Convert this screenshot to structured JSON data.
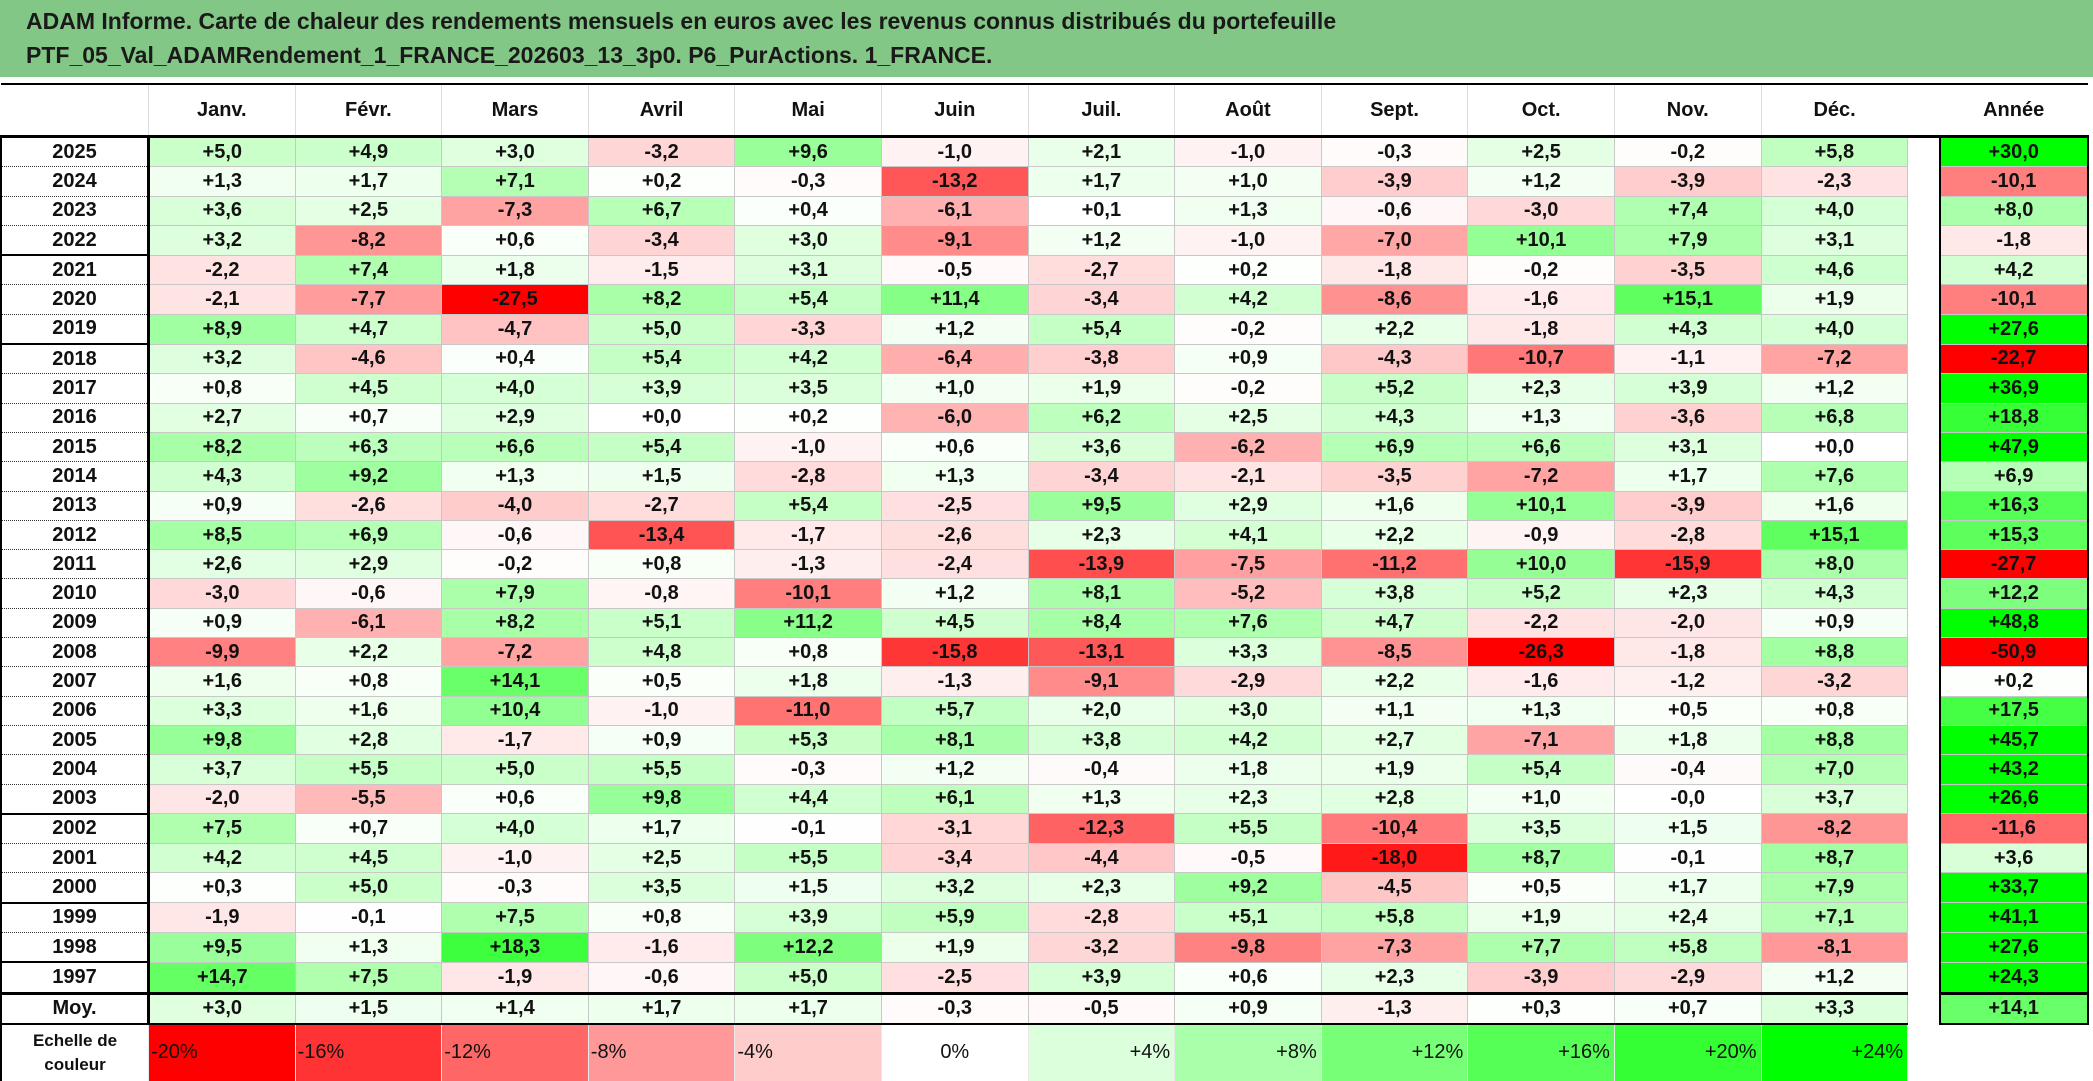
{
  "title": {
    "line1": "ADAM Informe. Carte de chaleur des rendements mensuels en euros avec les revenus connus distribués du portefeuille",
    "line2": "PTF_05_Val_ADAMRendement_1_FRANCE_202603_13_3p0. P6_PurActions. 1_FRANCE."
  },
  "chart_data": {
    "type": "heatmap",
    "columns": [
      "Janv.",
      "Févr.",
      "Mars",
      "Avril",
      "Mai",
      "Juin",
      "Juil.",
      "Août",
      "Sept.",
      "Oct.",
      "Nov.",
      "Déc."
    ],
    "annual_header": "Année",
    "rows": [
      {
        "year": "2025",
        "months": [
          "+5,0",
          "+4,9",
          "+3,0",
          "-3,2",
          "+9,6",
          "-1,0",
          "+2,1",
          "-1,0",
          "-0,3",
          "+2,5",
          "-0,2",
          "+5,8"
        ],
        "annual": "+30,0"
      },
      {
        "year": "2024",
        "months": [
          "+1,3",
          "+1,7",
          "+7,1",
          "+0,2",
          "-0,3",
          "-13,2",
          "+1,7",
          "+1,0",
          "-3,9",
          "+1,2",
          "-3,9",
          "-2,3"
        ],
        "annual": "-10,1"
      },
      {
        "year": "2023",
        "months": [
          "+3,6",
          "+2,5",
          "-7,3",
          "+6,7",
          "+0,4",
          "-6,1",
          "+0,1",
          "+1,3",
          "-0,6",
          "-3,0",
          "+7,4",
          "+4,0"
        ],
        "annual": "+8,0"
      },
      {
        "year": "2022",
        "months": [
          "+3,2",
          "-8,2",
          "+0,6",
          "-3,4",
          "+3,0",
          "-9,1",
          "+1,2",
          "-1,0",
          "-7,0",
          "+10,1",
          "+7,9",
          "+3,1"
        ],
        "annual": "-1,8"
      },
      {
        "year": "2021",
        "months": [
          "-2,2",
          "+7,4",
          "+1,8",
          "-1,5",
          "+3,1",
          "-0,5",
          "-2,7",
          "+0,2",
          "-1,8",
          "-0,2",
          "-3,5",
          "+4,6"
        ],
        "annual": "+4,2"
      },
      {
        "year": "2020",
        "months": [
          "-2,1",
          "-7,7",
          "-27,5",
          "+8,2",
          "+5,4",
          "+11,4",
          "-3,4",
          "+4,2",
          "-8,6",
          "-1,6",
          "+15,1",
          "+1,9"
        ],
        "annual": "-10,1"
      },
      {
        "year": "2019",
        "months": [
          "+8,9",
          "+4,7",
          "-4,7",
          "+5,0",
          "-3,3",
          "+1,2",
          "+5,4",
          "-0,2",
          "+2,2",
          "-1,8",
          "+4,3",
          "+4,0"
        ],
        "annual": "+27,6"
      },
      {
        "year": "2018",
        "months": [
          "+3,2",
          "-4,6",
          "+0,4",
          "+5,4",
          "+4,2",
          "-6,4",
          "-3,8",
          "+0,9",
          "-4,3",
          "-10,7",
          "-1,1",
          "-7,2"
        ],
        "annual": "-22,7"
      },
      {
        "year": "2017",
        "months": [
          "+0,8",
          "+4,5",
          "+4,0",
          "+3,9",
          "+3,5",
          "+1,0",
          "+1,9",
          "-0,2",
          "+5,2",
          "+2,3",
          "+3,9",
          "+1,2"
        ],
        "annual": "+36,9"
      },
      {
        "year": "2016",
        "months": [
          "+2,7",
          "+0,7",
          "+2,9",
          "+0,0",
          "+0,2",
          "-6,0",
          "+6,2",
          "+2,5",
          "+4,3",
          "+1,3",
          "-3,6",
          "+6,8"
        ],
        "annual": "+18,8"
      },
      {
        "year": "2015",
        "months": [
          "+8,2",
          "+6,3",
          "+6,6",
          "+5,4",
          "-1,0",
          "+0,6",
          "+3,6",
          "-6,2",
          "+6,9",
          "+6,6",
          "+3,1",
          "+0,0"
        ],
        "annual": "+47,9"
      },
      {
        "year": "2014",
        "months": [
          "+4,3",
          "+9,2",
          "+1,3",
          "+1,5",
          "-2,8",
          "+1,3",
          "-3,4",
          "-2,1",
          "-3,5",
          "-7,2",
          "+1,7",
          "+7,6"
        ],
        "annual": "+6,9"
      },
      {
        "year": "2013",
        "months": [
          "+0,9",
          "-2,6",
          "-4,0",
          "-2,7",
          "+5,4",
          "-2,5",
          "+9,5",
          "+2,9",
          "+1,6",
          "+10,1",
          "-3,9",
          "+1,6"
        ],
        "annual": "+16,3"
      },
      {
        "year": "2012",
        "months": [
          "+8,5",
          "+6,9",
          "-0,6",
          "-13,4",
          "-1,7",
          "-2,6",
          "+2,3",
          "+4,1",
          "+2,2",
          "-0,9",
          "-2,8",
          "+15,1"
        ],
        "annual": "+15,3"
      },
      {
        "year": "2011",
        "months": [
          "+2,6",
          "+2,9",
          "-0,2",
          "+0,8",
          "-1,3",
          "-2,4",
          "-13,9",
          "-7,5",
          "-11,2",
          "+10,0",
          "-15,9",
          "+8,0"
        ],
        "annual": "-27,7"
      },
      {
        "year": "2010",
        "months": [
          "-3,0",
          "-0,6",
          "+7,9",
          "-0,8",
          "-10,1",
          "+1,2",
          "+8,1",
          "-5,2",
          "+3,8",
          "+5,2",
          "+2,3",
          "+4,3"
        ],
        "annual": "+12,2"
      },
      {
        "year": "2009",
        "months": [
          "+0,9",
          "-6,1",
          "+8,2",
          "+5,1",
          "+11,2",
          "+4,5",
          "+8,4",
          "+7,6",
          "+4,7",
          "-2,2",
          "-2,0",
          "+0,9"
        ],
        "annual": "+48,8"
      },
      {
        "year": "2008",
        "months": [
          "-9,9",
          "+2,2",
          "-7,2",
          "+4,8",
          "+0,8",
          "-15,8",
          "-13,1",
          "+3,3",
          "-8,5",
          "-26,3",
          "-1,8",
          "+8,8"
        ],
        "annual": "-50,9"
      },
      {
        "year": "2007",
        "months": [
          "+1,6",
          "+0,8",
          "+14,1",
          "+0,5",
          "+1,8",
          "-1,3",
          "-9,1",
          "-2,9",
          "+2,2",
          "-1,6",
          "-1,2",
          "-3,2"
        ],
        "annual": "+0,2"
      },
      {
        "year": "2006",
        "months": [
          "+3,3",
          "+1,6",
          "+10,4",
          "-1,0",
          "-11,0",
          "+5,7",
          "+2,0",
          "+3,0",
          "+1,1",
          "+1,3",
          "+0,5",
          "+0,8"
        ],
        "annual": "+17,5"
      },
      {
        "year": "2005",
        "months": [
          "+9,8",
          "+2,8",
          "-1,7",
          "+0,9",
          "+5,3",
          "+8,1",
          "+3,8",
          "+4,2",
          "+2,7",
          "-7,1",
          "+1,8",
          "+8,8"
        ],
        "annual": "+45,7"
      },
      {
        "year": "2004",
        "months": [
          "+3,7",
          "+5,5",
          "+5,0",
          "+5,5",
          "-0,3",
          "+1,2",
          "-0,4",
          "+1,8",
          "+1,9",
          "+5,4",
          "-0,4",
          "+7,0"
        ],
        "annual": "+43,2"
      },
      {
        "year": "2003",
        "months": [
          "-2,0",
          "-5,5",
          "+0,6",
          "+9,8",
          "+4,4",
          "+6,1",
          "+1,3",
          "+2,3",
          "+2,8",
          "+1,0",
          "-0,0",
          "+3,7"
        ],
        "annual": "+26,6"
      },
      {
        "year": "2002",
        "months": [
          "+7,5",
          "+0,7",
          "+4,0",
          "+1,7",
          "-0,1",
          "-3,1",
          "-12,3",
          "+5,5",
          "-10,4",
          "+3,5",
          "+1,5",
          "-8,2"
        ],
        "annual": "-11,6"
      },
      {
        "year": "2001",
        "months": [
          "+4,2",
          "+4,5",
          "-1,0",
          "+2,5",
          "+5,5",
          "-3,4",
          "-4,4",
          "-0,5",
          "-18,0",
          "+8,7",
          "-0,1",
          "+8,7"
        ],
        "annual": "+3,6"
      },
      {
        "year": "2000",
        "months": [
          "+0,3",
          "+5,0",
          "-0,3",
          "+3,5",
          "+1,5",
          "+3,2",
          "+2,3",
          "+9,2",
          "-4,5",
          "+0,5",
          "+1,7",
          "+7,9"
        ],
        "annual": "+33,7"
      },
      {
        "year": "1999",
        "months": [
          "-1,9",
          "-0,1",
          "+7,5",
          "+0,8",
          "+3,9",
          "+5,9",
          "-2,8",
          "+5,1",
          "+5,8",
          "+1,9",
          "+2,4",
          "+7,1"
        ],
        "annual": "+41,1"
      },
      {
        "year": "1998",
        "months": [
          "+9,5",
          "+1,3",
          "+18,3",
          "-1,6",
          "+12,2",
          "+1,9",
          "-3,2",
          "-9,8",
          "-7,3",
          "+7,7",
          "+5,8",
          "-8,1"
        ],
        "annual": "+27,6"
      },
      {
        "year": "1997",
        "months": [
          "+14,7",
          "+7,5",
          "-1,9",
          "-0,6",
          "+5,0",
          "-2,5",
          "+3,9",
          "+0,6",
          "+2,3",
          "-3,9",
          "-2,9",
          "+1,2"
        ],
        "annual": "+24,3"
      }
    ],
    "average": {
      "label": "Moy.",
      "months": [
        "+3,0",
        "+1,5",
        "+1,4",
        "+1,7",
        "+1,7",
        "-0,3",
        "-0,5",
        "+0,9",
        "-1,3",
        "+0,3",
        "+0,7",
        "+3,3"
      ],
      "annual": "+14,1"
    },
    "color_scale": {
      "label_line1": "Echelle de",
      "label_line2": "couleur",
      "steps": [
        {
          "label": "-20%",
          "color": "#ff0000"
        },
        {
          "label": "-16%",
          "color": "#ff3333"
        },
        {
          "label": "-12%",
          "color": "#ff6666"
        },
        {
          "label": "-8%",
          "color": "#ff9999"
        },
        {
          "label": "-4%",
          "color": "#ffcccc"
        },
        {
          "label": "0%",
          "color": "#ffffff"
        },
        {
          "label": "+4%",
          "color": "#dcffdc"
        },
        {
          "label": "+8%",
          "color": "#aaffaa"
        },
        {
          "label": "+12%",
          "color": "#77ff77"
        },
        {
          "label": "+16%",
          "color": "#55ff55"
        },
        {
          "label": "+20%",
          "color": "#33ff33"
        },
        {
          "label": "+24%",
          "color": "#00ff00"
        }
      ],
      "negative_max_color": "#ff0000",
      "positive_max_color": "#00ff00"
    }
  },
  "colors": {
    "title_bg": "#82c785"
  }
}
